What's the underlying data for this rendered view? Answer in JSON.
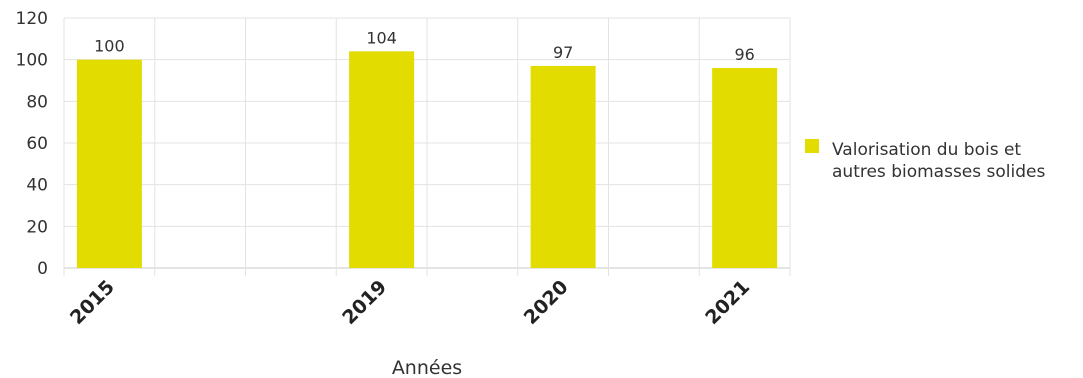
{
  "chart_data": {
    "type": "bar",
    "categories": [
      "2015",
      "",
      "",
      "2019",
      "",
      "2020",
      "",
      "2021"
    ],
    "series": [
      {
        "name": "Valorisation du bois et autres biomasses solides",
        "name_lines": [
          "Valorisation du bois et",
          "autres biomasses solides"
        ],
        "values": [
          100,
          null,
          null,
          104,
          null,
          97,
          null,
          96
        ],
        "color": "#e2dc00"
      }
    ],
    "data_labels": [
      "100",
      "",
      "",
      "104",
      "",
      "97",
      "",
      "96"
    ],
    "y_ticks": [
      "0",
      "20",
      "40",
      "60",
      "80",
      "100",
      "120"
    ],
    "ylim": [
      0,
      120
    ],
    "xlabel": "Années",
    "ylabel": "",
    "title": "",
    "grid": true,
    "legend_position": "right",
    "colors": {
      "bar": "#e2dc00",
      "grid": "#e3e3e3",
      "text": "#333333"
    }
  }
}
